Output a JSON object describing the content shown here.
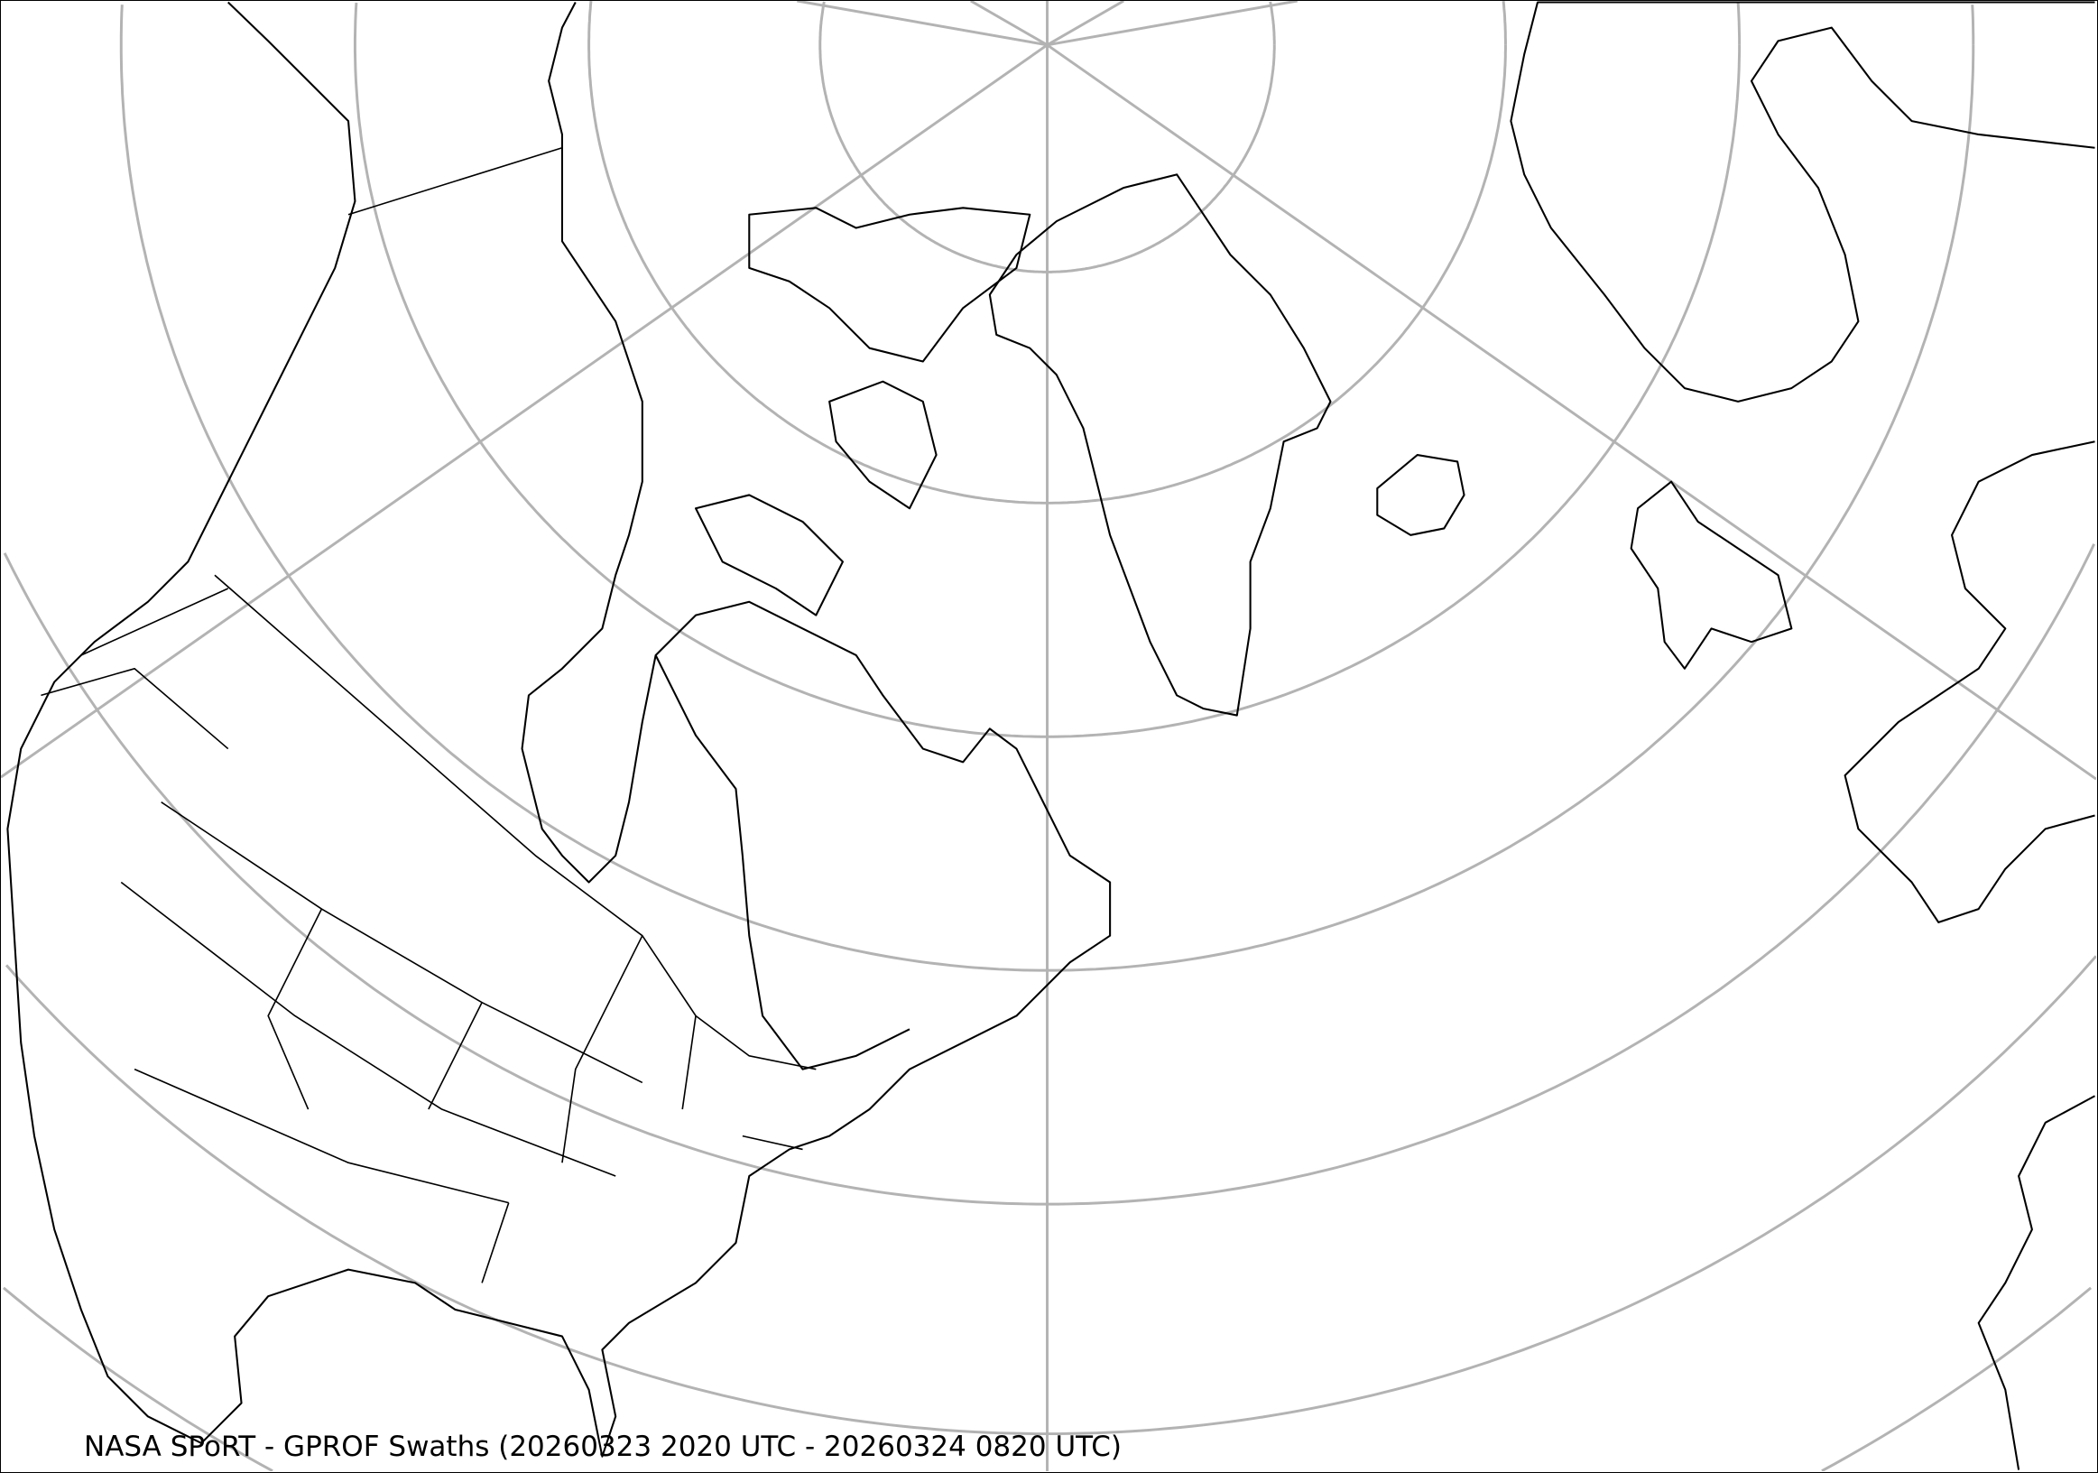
{
  "map": {
    "title": "NASA SPoRT - GPROF Swaths (20260323 2020 UTC - 20260324 0820 UTC)",
    "projection": "north-polar-stereographic",
    "graticule_color": "#b3b3b3",
    "coastline_color": "#000000",
    "background": "#ffffff"
  }
}
